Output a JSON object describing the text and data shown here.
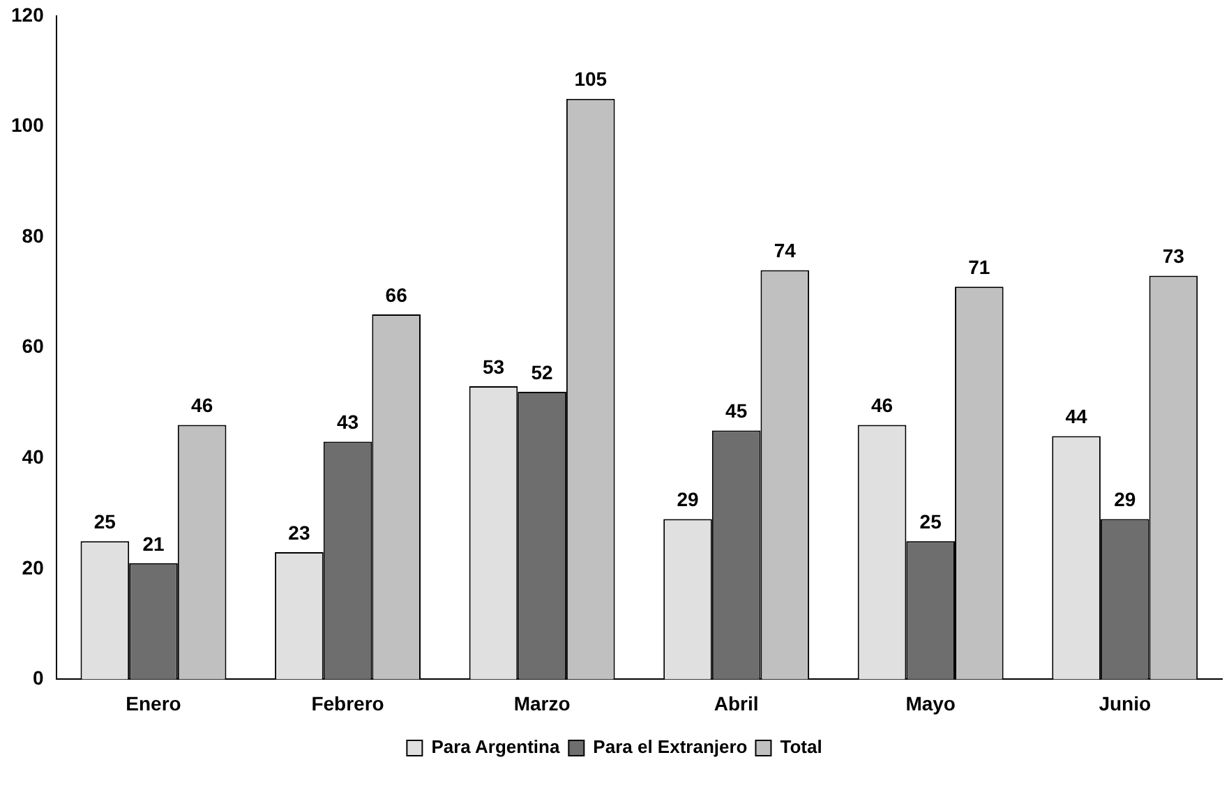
{
  "chart_data": {
    "type": "bar",
    "categories": [
      "Enero",
      "Febrero",
      "Marzo",
      "Abril",
      "Mayo",
      "Junio"
    ],
    "series": [
      {
        "name": "Para Argentina",
        "color": "#e0e0e0",
        "values": [
          25,
          23,
          53,
          29,
          46,
          44
        ]
      },
      {
        "name": "Para el Extranjero",
        "color": "#6e6e6e",
        "values": [
          21,
          43,
          52,
          45,
          25,
          29
        ]
      },
      {
        "name": "Total",
        "color": "#c0c0c0",
        "values": [
          46,
          66,
          105,
          74,
          71,
          73
        ]
      }
    ],
    "ylim": [
      0,
      120
    ],
    "yticks": [
      0,
      20,
      40,
      60,
      80,
      100,
      120
    ],
    "grid": false,
    "legend": "bottom",
    "data_labels": true
  }
}
